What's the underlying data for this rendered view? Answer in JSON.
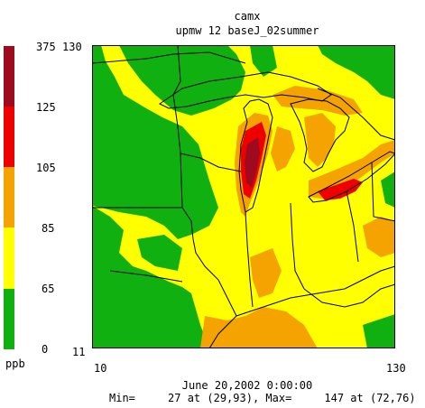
{
  "header": {
    "model": "camx",
    "run": "upmw 12 baseJ_02summer"
  },
  "legend": {
    "unit": "ppb",
    "levels": [
      {
        "label": "375",
        "color": "#9e0a1e"
      },
      {
        "label": "125",
        "color": "#ee0000"
      },
      {
        "label": "105",
        "color": "#f5a300"
      },
      {
        "label": "85",
        "color": "#ffff00"
      },
      {
        "label": "65",
        "color": "#10b010"
      },
      {
        "label": "0",
        "color": ""
      }
    ]
  },
  "axes": {
    "y_top": "130",
    "y_bottom": "11",
    "x_left": "10",
    "x_right": "130"
  },
  "footer": {
    "datetime": "June 20,2002 0:00:00",
    "stats": "Min=     27 at (29,93), Max=     147 at (72,76)"
  },
  "colors": {
    "green": "#10b010",
    "yellow": "#ffff00",
    "orange": "#f5a300",
    "red": "#ee0000",
    "darkred": "#9e0a1e"
  }
}
